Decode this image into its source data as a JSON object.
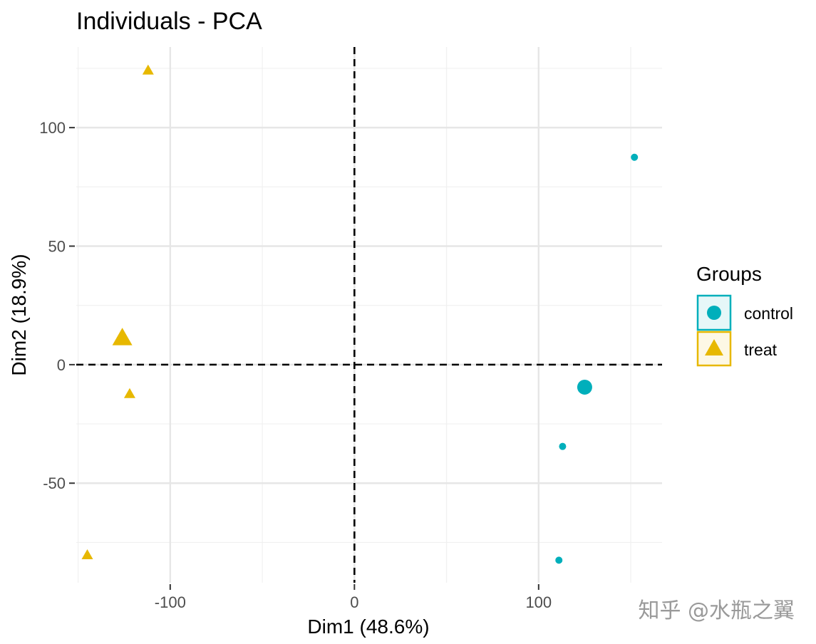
{
  "chart_data": {
    "type": "scatter",
    "title": "Individuals - PCA",
    "xlabel": "Dim1 (48.6%)",
    "ylabel": "Dim2 (18.9%)",
    "xlim": [
      -151,
      167
    ],
    "ylim": [
      -92,
      134
    ],
    "x_ticks": [
      -100,
      0,
      100
    ],
    "x_tick_labels": [
      "-100",
      "0",
      "100"
    ],
    "y_ticks": [
      -50,
      0,
      50,
      100
    ],
    "y_tick_labels": [
      "-50",
      "0",
      "50",
      "100"
    ],
    "grid": true,
    "reference_lines": {
      "x": 0,
      "y": 0,
      "style": "dashed"
    },
    "legend": {
      "title": "Groups",
      "placement": "right"
    },
    "series": [
      {
        "name": "control",
        "marker": "circle",
        "color": "#00AFBB",
        "points": [
          {
            "x": 152,
            "y": 87.5
          },
          {
            "x": 113,
            "y": -34.5
          },
          {
            "x": 111,
            "y": -82.5
          }
        ],
        "centroid": {
          "x": 125,
          "y": -9.5
        }
      },
      {
        "name": "treat",
        "marker": "triangle",
        "color": "#E7B800",
        "points": [
          {
            "x": -112,
            "y": 124
          },
          {
            "x": -122,
            "y": -12.5
          },
          {
            "x": -145,
            "y": -80.5
          }
        ],
        "centroid": {
          "x": -126,
          "y": 11
        }
      }
    ]
  },
  "watermark": "知乎 @水瓶之翼"
}
